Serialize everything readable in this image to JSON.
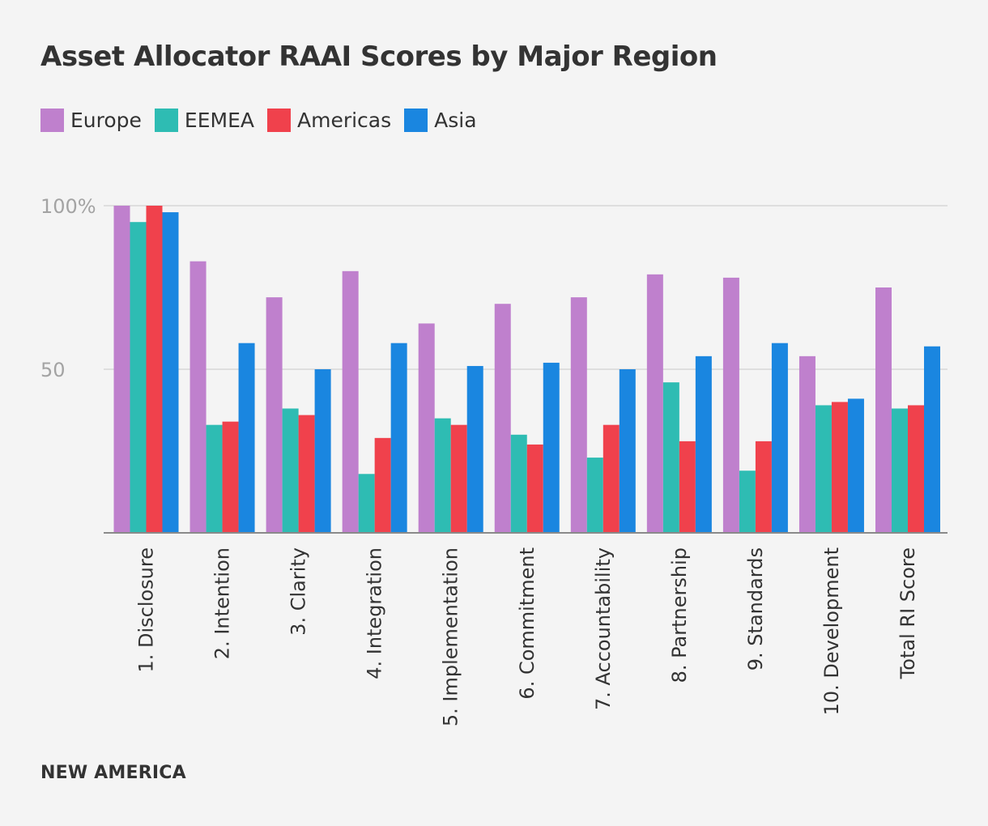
{
  "chart_data": {
    "type": "bar",
    "title": "Asset Allocator RAAI Scores by Major Region",
    "categories": [
      "1. Disclosure",
      "2. Intention",
      "3. Clarity",
      "4. Integration",
      "5. Implementation",
      "6. Commitment",
      "7. Accountability",
      "8. Partnership",
      "9. Standards",
      "10. Development",
      "Total RI Score"
    ],
    "series": [
      {
        "name": "Europe",
        "color": "#bf80cd",
        "values": [
          100,
          83,
          72,
          80,
          64,
          70,
          72,
          79,
          78,
          54,
          75
        ]
      },
      {
        "name": "EEMEA",
        "color": "#2ebcb3",
        "values": [
          95,
          33,
          38,
          18,
          35,
          30,
          23,
          46,
          19,
          39,
          38
        ]
      },
      {
        "name": "Americas",
        "color": "#f0414c",
        "values": [
          100,
          34,
          36,
          29,
          33,
          27,
          33,
          28,
          28,
          40,
          39
        ]
      },
      {
        "name": "Asia",
        "color": "#1a86e0",
        "values": [
          98,
          58,
          50,
          58,
          51,
          52,
          50,
          54,
          58,
          41,
          57
        ]
      }
    ],
    "ylim": [
      0,
      100
    ],
    "yticks": [
      {
        "value": 50,
        "label": "50"
      },
      {
        "value": 100,
        "label": "100%"
      }
    ],
    "xlabel": "",
    "ylabel": "",
    "grid": true,
    "legend": "top-left"
  },
  "source": "NEW AMERICA"
}
